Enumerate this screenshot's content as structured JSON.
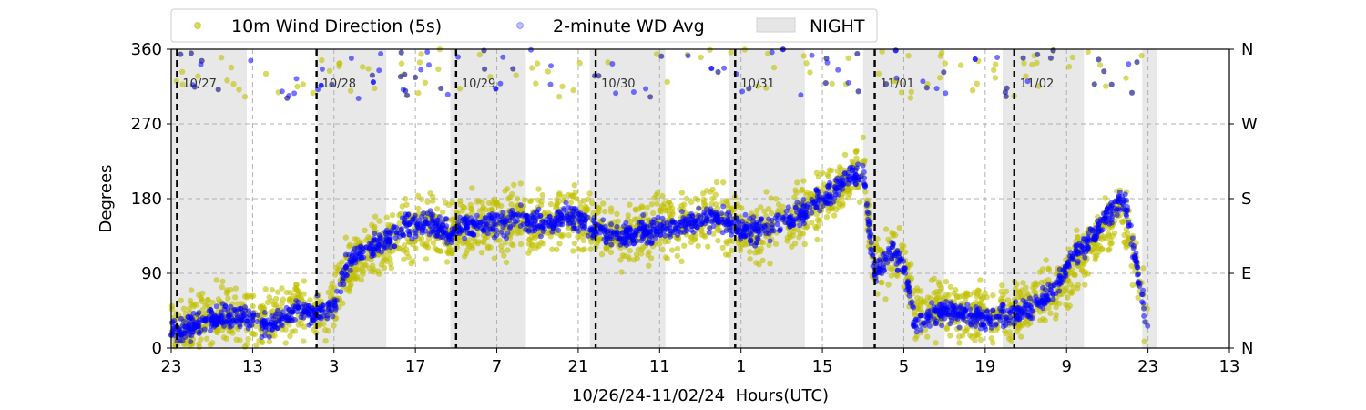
{
  "chart_data": {
    "type": "scatter",
    "xlabel": "10/26/24-11/02/24  Hours(UTC)",
    "ylabel": "Degrees",
    "ylim": [
      0,
      360
    ],
    "xlim_hours": [
      0,
      182
    ],
    "yticks": [
      0,
      90,
      180,
      270,
      360
    ],
    "y2ticks": [
      {
        "value": 0,
        "label": "N"
      },
      {
        "value": 90,
        "label": "E"
      },
      {
        "value": 180,
        "label": "S"
      },
      {
        "value": 270,
        "label": "W"
      },
      {
        "value": 360,
        "label": "N"
      }
    ],
    "xticks": [
      {
        "hour": 0,
        "label": "23"
      },
      {
        "hour": 14,
        "label": "13"
      },
      {
        "hour": 28,
        "label": "3"
      },
      {
        "hour": 42,
        "label": "17"
      },
      {
        "hour": 56,
        "label": "7"
      },
      {
        "hour": 70,
        "label": "21"
      },
      {
        "hour": 84,
        "label": "11"
      },
      {
        "hour": 98,
        "label": "1"
      },
      {
        "hour": 112,
        "label": "15"
      },
      {
        "hour": 126,
        "label": "5"
      },
      {
        "hour": 140,
        "label": "19"
      },
      {
        "hour": 154,
        "label": "9"
      },
      {
        "hour": 168,
        "label": "23"
      },
      {
        "hour": 182,
        "label": "13"
      }
    ],
    "grid": true,
    "legend_position": "top",
    "legend": [
      {
        "label": "10m Wind Direction (5s)",
        "kind": "marker",
        "color": "#bfbf00"
      },
      {
        "label": "2-minute WD Avg",
        "kind": "marker",
        "color": "#0000ff"
      },
      {
        "label": "NIGHT",
        "kind": "patch",
        "color": "#e6e6e6"
      }
    ],
    "day_markers": [
      {
        "hour": 1,
        "label": "10/27"
      },
      {
        "hour": 25,
        "label": "10/28"
      },
      {
        "hour": 49,
        "label": "10/29"
      },
      {
        "hour": 73,
        "label": "10/30"
      },
      {
        "hour": 97,
        "label": "10/31"
      },
      {
        "hour": 121,
        "label": "11/01"
      },
      {
        "hour": 145,
        "label": "11/02"
      }
    ],
    "night_periods": [
      [
        0,
        13
      ],
      [
        25,
        37
      ],
      [
        48,
        61
      ],
      [
        72,
        85
      ],
      [
        96,
        109
      ],
      [
        119,
        133
      ],
      [
        143,
        157
      ],
      [
        167,
        169.5
      ]
    ],
    "series": [
      {
        "name": "10m Wind Direction (5s)",
        "color": "#bfbf00",
        "spread": 35,
        "x": [
          0,
          4,
          8,
          12,
          16,
          20,
          22,
          24,
          26,
          28,
          30,
          32,
          36,
          40,
          44,
          48,
          52,
          56,
          60,
          64,
          68,
          72,
          76,
          80,
          84,
          88,
          92,
          96,
          100,
          104,
          108,
          112,
          116,
          119,
          121,
          124,
          126,
          128,
          132,
          136,
          140,
          144,
          148,
          152,
          155,
          158,
          161,
          164,
          168
        ],
        "y": [
          25,
          30,
          35,
          40,
          30,
          45,
          50,
          40,
          45,
          55,
          90,
          110,
          125,
          140,
          145,
          140,
          150,
          150,
          155,
          150,
          160,
          150,
          135,
          140,
          145,
          150,
          155,
          150,
          140,
          150,
          160,
          180,
          200,
          215,
          90,
          120,
          100,
          40,
          50,
          45,
          40,
          45,
          55,
          70,
          100,
          120,
          150,
          160,
          30
        ]
      },
      {
        "name": "2-minute WD Avg",
        "color": "#0000ff",
        "spread": 14,
        "x": [
          0,
          4,
          8,
          12,
          16,
          20,
          22,
          24,
          26,
          28,
          30,
          32,
          36,
          40,
          44,
          48,
          52,
          56,
          60,
          64,
          68,
          72,
          76,
          80,
          84,
          88,
          92,
          96,
          100,
          104,
          108,
          112,
          116,
          119,
          121,
          124,
          126,
          128,
          132,
          136,
          140,
          144,
          148,
          152,
          155,
          158,
          161,
          164,
          168
        ],
        "y": [
          20,
          28,
          35,
          38,
          25,
          40,
          48,
          40,
          45,
          50,
          95,
          115,
          125,
          145,
          150,
          140,
          150,
          150,
          155,
          150,
          160,
          150,
          135,
          140,
          140,
          150,
          155,
          150,
          140,
          150,
          160,
          180,
          205,
          215,
          85,
          120,
          95,
          30,
          45,
          40,
          35,
          40,
          50,
          70,
          110,
          130,
          160,
          180,
          20
        ]
      }
    ]
  }
}
